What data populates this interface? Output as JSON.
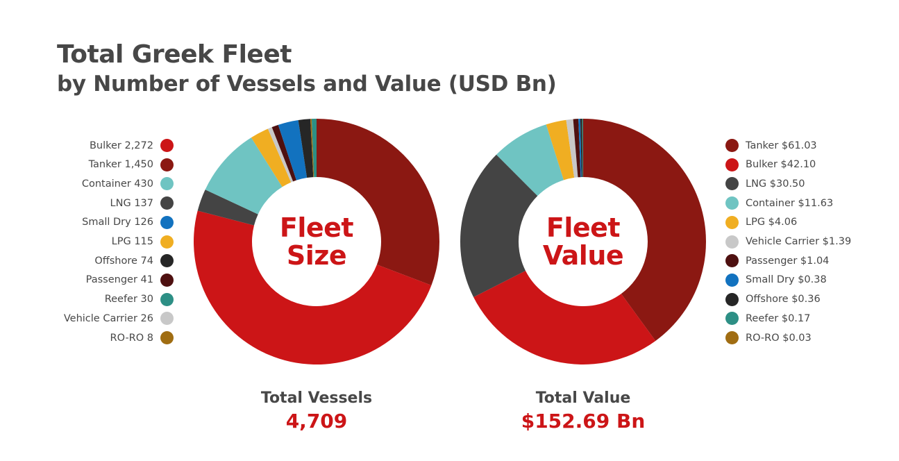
{
  "title": "Total Greek Fleet",
  "subtitle": "by Number of Vessels and Value (USD Bn)",
  "chart_data": [
    {
      "type": "pie",
      "variant": "donut",
      "center_label": [
        "Fleet",
        "Size"
      ],
      "legend_position": "left",
      "slices": [
        {
          "label": "Bulker 2,272",
          "name": "Bulker",
          "value": 2272,
          "color": "#cc1517"
        },
        {
          "label": "Tanker 1,450",
          "name": "Tanker",
          "value": 1450,
          "color": "#8b1812"
        },
        {
          "label": "Container 430",
          "name": "Container",
          "value": 430,
          "color": "#6fc4c2"
        },
        {
          "label": "LNG 137",
          "name": "LNG",
          "value": 137,
          "color": "#444444"
        },
        {
          "label": "Small Dry 126",
          "name": "Small Dry",
          "value": 126,
          "color": "#1272bf"
        },
        {
          "label": "LPG 115",
          "name": "LPG",
          "value": 115,
          "color": "#f0ae22"
        },
        {
          "label": "Offshore 74",
          "name": "Offshore",
          "value": 74,
          "color": "#262626"
        },
        {
          "label": "Passenger 41",
          "name": "Passenger",
          "value": 41,
          "color": "#4e1010"
        },
        {
          "label": "Reefer 30",
          "name": "Reefer",
          "value": 30,
          "color": "#2d8f85"
        },
        {
          "label": "Vehicle Carrier 26",
          "name": "Vehicle Carrier",
          "value": 26,
          "color": "#c8c8c8"
        },
        {
          "label": "RO-RO 8",
          "name": "RO-RO",
          "value": 8,
          "color": "#a06d12"
        }
      ],
      "wheel_order": [
        "Tanker",
        "Bulker",
        "LNG",
        "Container",
        "LPG",
        "Vehicle Carrier",
        "Passenger",
        "Small Dry",
        "Offshore",
        "RO-RO",
        "Reefer"
      ],
      "total_label": "Total Vessels",
      "total_value": "4,709"
    },
    {
      "type": "pie",
      "variant": "donut",
      "center_label": [
        "Fleet",
        "Value"
      ],
      "legend_position": "right",
      "slices": [
        {
          "label": "Tanker $61.03",
          "name": "Tanker",
          "value": 61.03,
          "color": "#8b1812"
        },
        {
          "label": "Bulker $42.10",
          "name": "Bulker",
          "value": 42.1,
          "color": "#cc1517"
        },
        {
          "label": "LNG $30.50",
          "name": "LNG",
          "value": 30.5,
          "color": "#444444"
        },
        {
          "label": "Container $11.63",
          "name": "Container",
          "value": 11.63,
          "color": "#6fc4c2"
        },
        {
          "label": "LPG $4.06",
          "name": "LPG",
          "value": 4.06,
          "color": "#f0ae22"
        },
        {
          "label": "Vehicle Carrier $1.39",
          "name": "Vehicle Carrier",
          "value": 1.39,
          "color": "#c8c8c8"
        },
        {
          "label": "Passenger $1.04",
          "name": "Passenger",
          "value": 1.04,
          "color": "#4e1010"
        },
        {
          "label": "Small Dry $0.38",
          "name": "Small Dry",
          "value": 0.38,
          "color": "#1272bf"
        },
        {
          "label": "Offshore $0.36",
          "name": "Offshore",
          "value": 0.36,
          "color": "#262626"
        },
        {
          "label": "Reefer $0.17",
          "name": "Reefer",
          "value": 0.17,
          "color": "#2d8f85"
        },
        {
          "label": "RO-RO $0.03",
          "name": "RO-RO",
          "value": 0.03,
          "color": "#a06d12"
        }
      ],
      "wheel_order": [
        "Tanker",
        "Bulker",
        "LNG",
        "Container",
        "LPG",
        "Vehicle Carrier",
        "Passenger",
        "Small Dry",
        "Offshore",
        "RO-RO",
        "Reefer"
      ],
      "total_label": "Total Value",
      "total_value": "$152.69 Bn"
    }
  ]
}
